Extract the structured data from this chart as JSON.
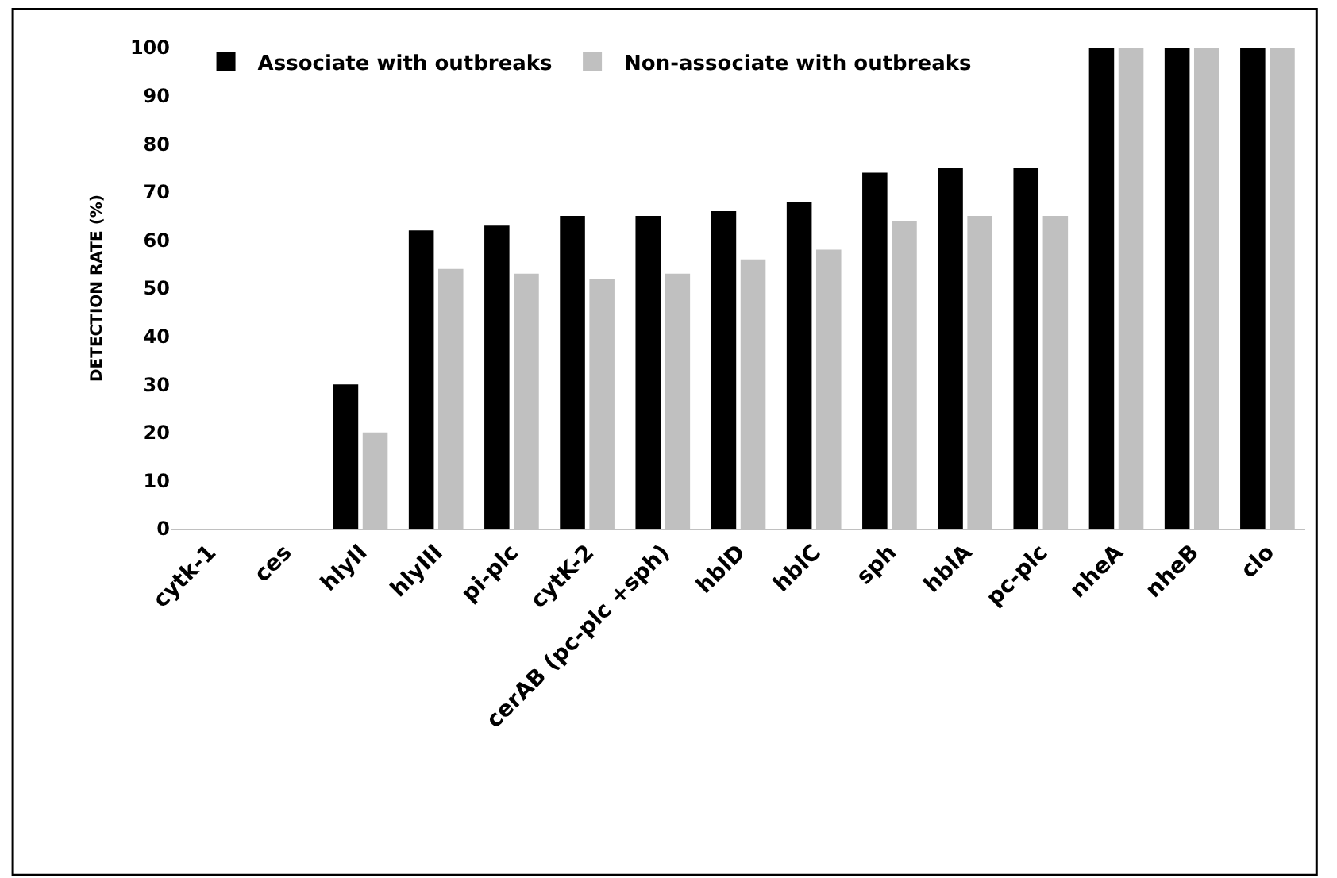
{
  "chart_data": {
    "type": "bar",
    "ylabel": "DETECTION RATE (%)",
    "categories": [
      "cytk-1",
      "ces",
      "hlyII",
      "hlyIII",
      "pi-plc",
      "cytK-2",
      "cerAB (pc-plc +sph)",
      "hblD",
      "hblC",
      "sph",
      "hblA",
      "pc-plc",
      "nheA",
      "nheB",
      "clo"
    ],
    "series": [
      {
        "name": "Associate with outbreaks",
        "color": "#000000",
        "values": [
          0,
          0,
          30,
          62,
          63,
          65,
          65,
          66,
          68,
          74,
          75,
          75,
          100,
          100,
          100
        ]
      },
      {
        "name": "Non-associate with outbreaks",
        "color": "#c0c0c0",
        "values": [
          0,
          0,
          20,
          54,
          53,
          52,
          53,
          56,
          58,
          64,
          65,
          65,
          100,
          100,
          100
        ]
      }
    ],
    "ylim": [
      0,
      100
    ],
    "yticks": [
      0,
      10,
      20,
      30,
      40,
      50,
      60,
      70,
      80,
      90,
      100
    ],
    "legend": "top left"
  }
}
